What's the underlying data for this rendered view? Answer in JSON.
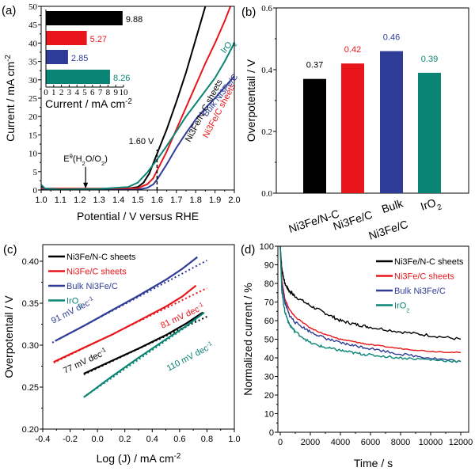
{
  "colors": {
    "black": "#000000",
    "red": "#e8161b",
    "blue": "#2e3c98",
    "teal": "#0a8474"
  },
  "chart_data": [
    {
      "panel": "(a)",
      "type": "line",
      "title": "",
      "xlabel": "Potential / V versus RHE",
      "ylabel": "Current / mA cm-2",
      "xlim": [
        1.0,
        2.0
      ],
      "ylim": [
        0,
        50
      ],
      "xticks": [
        "1.0",
        "1.1",
        "1.2",
        "1.3",
        "1.4",
        "1.5",
        "1.6",
        "1.7",
        "1.8",
        "1.9",
        "2.0"
      ],
      "yticks": [
        "0",
        "5",
        "10",
        "15",
        "20",
        "25",
        "30",
        "35",
        "40",
        "45",
        "50"
      ],
      "annotations": [
        {
          "text": "1.60 V",
          "x": 1.6
        },
        {
          "text": "Eθ(H2O/O2)",
          "x": 1.23
        }
      ],
      "series": [
        {
          "name": "Ni3Fe/N-C sheets",
          "color": "black",
          "x": [
            1.0,
            1.02,
            1.1,
            1.3,
            1.45,
            1.5,
            1.53,
            1.56,
            1.6,
            1.65,
            1.7,
            1.75,
            1.8,
            1.85
          ],
          "y": [
            1.0,
            0.3,
            0.2,
            0.2,
            0.4,
            0.8,
            2.0,
            4.5,
            9.9,
            16.5,
            24,
            32,
            41,
            50
          ]
        },
        {
          "name": "Ni3Fe/C sheets",
          "color": "red",
          "x": [
            1.0,
            1.02,
            1.1,
            1.3,
            1.5,
            1.55,
            1.58,
            1.6,
            1.65,
            1.7,
            1.75,
            1.8,
            1.85,
            1.9,
            1.95,
            1.98
          ],
          "y": [
            0.2,
            0.4,
            0.4,
            0.4,
            0.5,
            1.6,
            3.2,
            5.3,
            10.5,
            16.5,
            22.5,
            28.5,
            34.5,
            40,
            46,
            50
          ]
        },
        {
          "name": "Bulk Ni3Fe/C",
          "color": "blue",
          "x": [
            1.0,
            1.2,
            1.4,
            1.5,
            1.55,
            1.58,
            1.6,
            1.65,
            1.7,
            1.75,
            1.8,
            1.85,
            1.9,
            1.95,
            2.0
          ],
          "y": [
            0.0,
            0.0,
            0.0,
            0.1,
            0.6,
            1.5,
            2.85,
            7,
            11.5,
            15.5,
            19.2,
            22.3,
            25,
            28,
            31
          ]
        },
        {
          "name": "IrO2",
          "color": "teal",
          "x": [
            1.0,
            1.02,
            1.1,
            1.3,
            1.45,
            1.5,
            1.55,
            1.6,
            1.65,
            1.7,
            1.75,
            1.8,
            1.85,
            1.9,
            1.95,
            2.0
          ],
          "y": [
            1.4,
            0.4,
            0.2,
            0.3,
            0.8,
            2.0,
            4.8,
            8.3,
            12,
            16,
            20,
            23.5,
            27,
            30.5,
            35,
            40
          ]
        }
      ],
      "curve_labels": [
        "Ni3Fe/N-C sheets",
        "Ni3Fe/C sheets",
        "IrO2",
        "Bulk Ni3Fe/C"
      ],
      "inset": {
        "type": "bar",
        "orientation": "horizontal",
        "xlabel": "Current / mA cm-2",
        "xlim": [
          0,
          10
        ],
        "xticks": [
          "0",
          "1",
          "2",
          "3",
          "4",
          "5",
          "6",
          "7",
          "8",
          "9",
          "10"
        ],
        "bars": [
          {
            "value": 9.88,
            "label": "9.88",
            "color": "black"
          },
          {
            "value": 5.27,
            "label": "5.27",
            "color": "red"
          },
          {
            "value": 2.85,
            "label": "2.85",
            "color": "blue"
          },
          {
            "value": 8.26,
            "label": "8.26",
            "color": "teal"
          }
        ]
      }
    },
    {
      "panel": "(b)",
      "type": "bar",
      "title": "",
      "xlabel": "",
      "ylabel": "Overpotentail / V",
      "ylim": [
        0.0,
        0.6
      ],
      "yticks": [
        "0.0",
        "0.2",
        "0.4",
        "0.6"
      ],
      "categories": [
        "Ni3Fe/N-C",
        "Ni3Fe/C",
        "Bulk Ni3Fe/C",
        "IrO2"
      ],
      "category_lines": [
        [
          "Ni3Fe/N-C"
        ],
        [
          "Ni3Fe/C"
        ],
        [
          "Bulk",
          "Ni3Fe/C"
        ],
        [
          "IrO2"
        ]
      ],
      "values": [
        0.37,
        0.42,
        0.46,
        0.39
      ],
      "value_labels": [
        "0.37",
        "0.42",
        "0.46",
        "0.39"
      ],
      "colors": [
        "black",
        "red",
        "blue",
        "teal"
      ]
    },
    {
      "panel": "(c)",
      "type": "line",
      "title": "",
      "xlabel": "Log (J) / mA cm-2",
      "ylabel": "Overpotentail / V",
      "xlim": [
        -0.4,
        1.0
      ],
      "ylim": [
        0.2,
        0.42
      ],
      "xticks": [
        "-0.4",
        "-0.2",
        "0.0",
        "0.2",
        "0.4",
        "0.6",
        "0.8",
        "1.0"
      ],
      "yticks": [
        "0.20",
        "0.25",
        "0.30",
        "0.35",
        "0.40"
      ],
      "legend": "top-left",
      "series": [
        {
          "name": "Ni3Fe/N-C sheets",
          "color": "black",
          "tafel": "77 mV dec-1",
          "x": [
            -0.1,
            0.1,
            0.3,
            0.5,
            0.65,
            0.77
          ],
          "y": [
            0.266,
            0.281,
            0.296,
            0.312,
            0.326,
            0.339
          ],
          "fit_x": [
            -0.1,
            0.8
          ],
          "fit_y": [
            0.265,
            0.334
          ]
        },
        {
          "name": "Ni3Fe/C sheets",
          "color": "red",
          "tafel": "81 mV dec-1",
          "x": [
            -0.32,
            -0.1,
            0.1,
            0.3,
            0.5,
            0.62,
            0.72
          ],
          "y": [
            0.28,
            0.297,
            0.312,
            0.329,
            0.346,
            0.358,
            0.371
          ],
          "fit_x": [
            -0.32,
            0.8
          ],
          "fit_y": [
            0.279,
            0.368
          ]
        },
        {
          "name": "Bulk Ni3Fe/C",
          "color": "blue",
          "tafel": "91 mV dec-1",
          "x": [
            -0.31,
            -0.1,
            0.1,
            0.3,
            0.5,
            0.62,
            0.73
          ],
          "y": [
            0.305,
            0.323,
            0.341,
            0.359,
            0.378,
            0.391,
            0.405
          ],
          "fit_x": [
            -0.33,
            0.8
          ],
          "fit_y": [
            0.303,
            0.401
          ]
        },
        {
          "name": "IrO2",
          "color": "teal",
          "tafel": "110 mV dec-1",
          "x": [
            -0.1,
            0.1,
            0.3,
            0.5,
            0.65,
            0.78
          ],
          "y": [
            0.238,
            0.262,
            0.285,
            0.307,
            0.323,
            0.339
          ],
          "fit_x": [
            -0.1,
            0.72
          ],
          "fit_y": [
            0.238,
            0.33
          ]
        }
      ]
    },
    {
      "panel": "(d)",
      "type": "line",
      "title": "",
      "xlabel": "Time / s",
      "ylabel": "Normalized current / %",
      "xlim": [
        0,
        12000
      ],
      "ylim": [
        0,
        100
      ],
      "xticks": [
        "0",
        "2000",
        "4000",
        "6000",
        "8000",
        "10000",
        "12000"
      ],
      "yticks": [
        "0",
        "10",
        "20",
        "30",
        "40",
        "50",
        "60",
        "70",
        "80",
        "90",
        "100"
      ],
      "legend": "top-right",
      "series": [
        {
          "name": "Ni3Fe/N-C sheets",
          "color": "black",
          "x": [
            0,
            100,
            300,
            600,
            1000,
            2000,
            3000,
            4000,
            5000,
            6000,
            8000,
            10000,
            12000
          ],
          "y": [
            100,
            88,
            80,
            76,
            73,
            68,
            64,
            60,
            58,
            56.5,
            54,
            52,
            50
          ]
        },
        {
          "name": "Ni3Fe/C sheets",
          "color": "red",
          "x": [
            0,
            100,
            300,
            600,
            1000,
            2000,
            3000,
            4000,
            5000,
            6000,
            8000,
            10000,
            12000
          ],
          "y": [
            100,
            82,
            72,
            66,
            62,
            56,
            52.5,
            50,
            48.5,
            47,
            45,
            43.5,
            42.8
          ]
        },
        {
          "name": "Bulk Ni3Fe/C",
          "color": "blue",
          "x": [
            0,
            100,
            300,
            600,
            1000,
            2000,
            3000,
            4000,
            5000,
            6000,
            8000,
            10000,
            12000
          ],
          "y": [
            100,
            80,
            70,
            63,
            59,
            54,
            50.5,
            48,
            46.5,
            45,
            42,
            40,
            38
          ]
        },
        {
          "name": "IrO2",
          "color": "teal",
          "x": [
            0,
            100,
            300,
            600,
            1000,
            2000,
            3000,
            4000,
            5000,
            6000,
            8000,
            10000,
            12000
          ],
          "y": [
            100,
            76,
            65,
            58,
            54,
            48,
            45.5,
            44,
            42.5,
            41.5,
            40,
            39,
            38
          ]
        }
      ]
    }
  ]
}
